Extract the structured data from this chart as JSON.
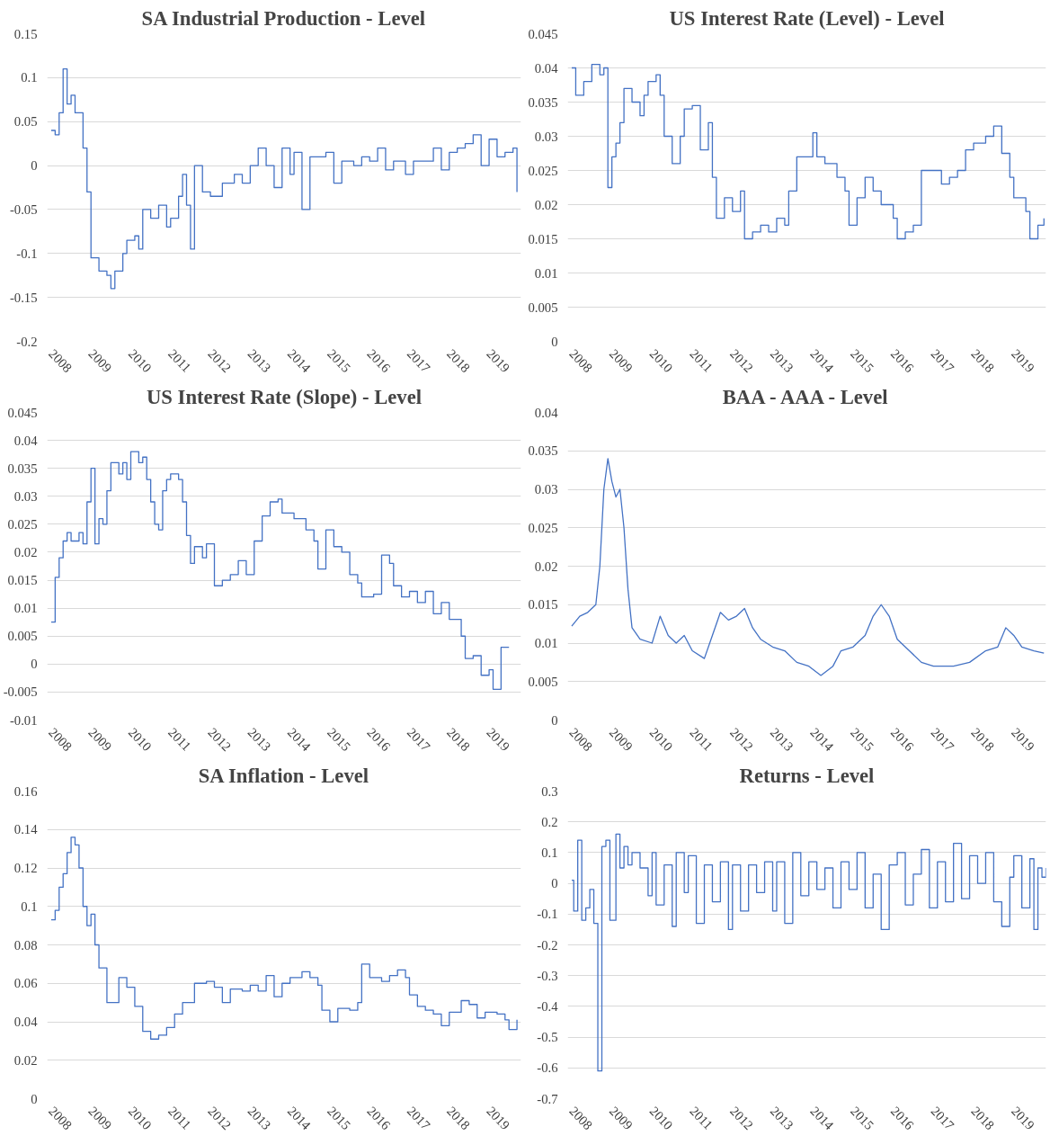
{
  "chart_data": [
    {
      "type": "step",
      "title": "SA Industrial Production - Level",
      "xlim": [
        2007.9,
        2019.8
      ],
      "xticks": [
        2008,
        2009,
        2010,
        2011,
        2012,
        2013,
        2014,
        2015,
        2016,
        2017,
        2018,
        2019
      ],
      "ylim": [
        -0.2,
        0.15
      ],
      "yticks": [
        -0.2,
        -0.15,
        -0.1,
        -0.05,
        0,
        0.05,
        0.1,
        0.15
      ],
      "grid": "y",
      "line_style": "solid",
      "series": [
        {
          "color": "#4472c4",
          "x": [
            2008.0,
            2008.1,
            2008.2,
            2008.3,
            2008.4,
            2008.5,
            2008.6,
            2008.8,
            2008.9,
            2009.0,
            2009.2,
            2009.4,
            2009.5,
            2009.6,
            2009.8,
            2009.9,
            2010.1,
            2010.2,
            2010.3,
            2010.5,
            2010.7,
            2010.9,
            2011.0,
            2011.2,
            2011.3,
            2011.4,
            2011.5,
            2011.6,
            2011.8,
            2012.0,
            2012.3,
            2012.6,
            2012.8,
            2013.0,
            2013.2,
            2013.4,
            2013.6,
            2013.8,
            2014.0,
            2014.1,
            2014.3,
            2014.5,
            2014.7,
            2014.9,
            2015.1,
            2015.3,
            2015.6,
            2015.8,
            2016.0,
            2016.2,
            2016.4,
            2016.6,
            2016.9,
            2017.1,
            2017.4,
            2017.6,
            2017.8,
            2018.0,
            2018.2,
            2018.4,
            2018.6,
            2018.8,
            2019.0,
            2019.2,
            2019.4,
            2019.6,
            2019.7
          ],
          "values": [
            0.04,
            0.035,
            0.06,
            0.11,
            0.07,
            0.08,
            0.06,
            0.02,
            -0.03,
            -0.105,
            -0.12,
            -0.125,
            -0.14,
            -0.12,
            -0.1,
            -0.085,
            -0.08,
            -0.095,
            -0.05,
            -0.06,
            -0.045,
            -0.07,
            -0.06,
            -0.035,
            -0.01,
            -0.045,
            -0.095,
            0.0,
            -0.03,
            -0.035,
            -0.02,
            -0.01,
            -0.02,
            0.0,
            0.02,
            0.0,
            -0.025,
            0.02,
            -0.01,
            0.015,
            -0.05,
            0.01,
            0.01,
            0.015,
            -0.02,
            0.005,
            0.0,
            0.01,
            0.005,
            0.02,
            -0.005,
            0.005,
            -0.01,
            0.005,
            0.005,
            0.02,
            -0.005,
            0.015,
            0.02,
            0.025,
            0.035,
            0.0,
            0.03,
            0.01,
            0.015,
            0.02,
            -0.03
          ]
        }
      ]
    },
    {
      "type": "step",
      "title": "US Interest Rate (Level) - Level",
      "xlim": [
        2007.9,
        2019.8
      ],
      "xticks": [
        2008,
        2009,
        2010,
        2011,
        2012,
        2013,
        2014,
        2015,
        2016,
        2017,
        2018,
        2019
      ],
      "ylim": [
        0,
        0.045
      ],
      "yticks": [
        0,
        0.005,
        0.01,
        0.015,
        0.02,
        0.025,
        0.03,
        0.035,
        0.04,
        0.045
      ],
      "grid": "y",
      "line_style": "solid",
      "series": [
        {
          "color": "#4472c4",
          "x": [
            2008.0,
            2008.1,
            2008.3,
            2008.5,
            2008.7,
            2008.8,
            2008.9,
            2009.0,
            2009.1,
            2009.2,
            2009.3,
            2009.5,
            2009.7,
            2009.8,
            2009.9,
            2010.1,
            2010.2,
            2010.3,
            2010.5,
            2010.7,
            2010.8,
            2011.0,
            2011.2,
            2011.4,
            2011.5,
            2011.6,
            2011.8,
            2012.0,
            2012.2,
            2012.3,
            2012.5,
            2012.7,
            2012.9,
            2013.1,
            2013.3,
            2013.4,
            2013.6,
            2013.9,
            2014.0,
            2014.1,
            2014.3,
            2014.6,
            2014.8,
            2014.9,
            2015.1,
            2015.3,
            2015.5,
            2015.7,
            2016.0,
            2016.1,
            2016.3,
            2016.5,
            2016.7,
            2017.0,
            2017.2,
            2017.4,
            2017.6,
            2017.8,
            2018.0,
            2018.3,
            2018.5,
            2018.7,
            2018.9,
            2019.0,
            2019.3,
            2019.4,
            2019.6,
            2019.75
          ],
          "values": [
            0.04,
            0.036,
            0.038,
            0.0405,
            0.039,
            0.04,
            0.0225,
            0.027,
            0.029,
            0.032,
            0.037,
            0.035,
            0.033,
            0.036,
            0.038,
            0.039,
            0.036,
            0.03,
            0.026,
            0.03,
            0.034,
            0.0345,
            0.028,
            0.032,
            0.024,
            0.018,
            0.021,
            0.019,
            0.022,
            0.015,
            0.016,
            0.017,
            0.016,
            0.018,
            0.017,
            0.022,
            0.027,
            0.027,
            0.0305,
            0.027,
            0.026,
            0.024,
            0.022,
            0.017,
            0.021,
            0.024,
            0.022,
            0.02,
            0.018,
            0.015,
            0.016,
            0.017,
            0.025,
            0.025,
            0.023,
            0.024,
            0.025,
            0.028,
            0.029,
            0.03,
            0.0315,
            0.0275,
            0.024,
            0.021,
            0.019,
            0.015,
            0.017,
            0.018
          ]
        }
      ]
    },
    {
      "type": "step",
      "title": "US Interest Rate (Slope) - Level",
      "xlim": [
        2007.9,
        2019.8
      ],
      "xticks": [
        2008,
        2009,
        2010,
        2011,
        2012,
        2013,
        2014,
        2015,
        2016,
        2017,
        2018,
        2019
      ],
      "ylim": [
        -0.01,
        0.045
      ],
      "yticks": [
        -0.01,
        -0.005,
        0,
        0.005,
        0.01,
        0.015,
        0.02,
        0.025,
        0.03,
        0.035,
        0.04,
        0.045
      ],
      "grid": "y",
      "line_style": "solid",
      "series": [
        {
          "color": "#4472c4",
          "x": [
            2008.0,
            2008.1,
            2008.2,
            2008.3,
            2008.4,
            2008.5,
            2008.7,
            2008.8,
            2008.9,
            2009.0,
            2009.1,
            2009.2,
            2009.3,
            2009.4,
            2009.5,
            2009.7,
            2009.8,
            2009.9,
            2010.0,
            2010.2,
            2010.3,
            2010.4,
            2010.5,
            2010.6,
            2010.7,
            2010.8,
            2010.9,
            2011.0,
            2011.2,
            2011.3,
            2011.4,
            2011.5,
            2011.6,
            2011.8,
            2011.9,
            2012.1,
            2012.3,
            2012.5,
            2012.7,
            2012.9,
            2013.1,
            2013.3,
            2013.5,
            2013.7,
            2013.8,
            2014.1,
            2014.4,
            2014.6,
            2014.7,
            2014.9,
            2015.1,
            2015.3,
            2015.5,
            2015.7,
            2015.8,
            2016.1,
            2016.3,
            2016.5,
            2016.6,
            2016.8,
            2017.0,
            2017.2,
            2017.4,
            2017.6,
            2017.8,
            2018.0,
            2018.3,
            2018.4,
            2018.6,
            2018.8,
            2019.0,
            2019.1,
            2019.3,
            2019.5
          ],
          "values": [
            0.0075,
            0.0155,
            0.019,
            0.022,
            0.0235,
            0.022,
            0.0235,
            0.0215,
            0.029,
            0.035,
            0.0215,
            0.026,
            0.025,
            0.031,
            0.036,
            0.034,
            0.036,
            0.033,
            0.038,
            0.036,
            0.037,
            0.033,
            0.029,
            0.025,
            0.024,
            0.031,
            0.033,
            0.034,
            0.033,
            0.029,
            0.023,
            0.018,
            0.021,
            0.019,
            0.0215,
            0.014,
            0.015,
            0.016,
            0.0185,
            0.016,
            0.022,
            0.0265,
            0.029,
            0.0295,
            0.027,
            0.026,
            0.024,
            0.022,
            0.017,
            0.024,
            0.021,
            0.02,
            0.016,
            0.0145,
            0.012,
            0.0125,
            0.0195,
            0.018,
            0.014,
            0.012,
            0.013,
            0.011,
            0.013,
            0.009,
            0.011,
            0.008,
            0.005,
            0.001,
            0.0015,
            -0.002,
            -0.001,
            -0.0045,
            0.003,
            0.003
          ]
        }
      ]
    },
    {
      "type": "line",
      "title": "BAA - AAA - Level",
      "xlim": [
        2007.9,
        2019.8
      ],
      "xticks": [
        2008,
        2009,
        2010,
        2011,
        2012,
        2013,
        2014,
        2015,
        2016,
        2017,
        2018,
        2019
      ],
      "ylim": [
        0,
        0.04
      ],
      "yticks": [
        0,
        0.005,
        0.01,
        0.015,
        0.02,
        0.025,
        0.03,
        0.035,
        0.04
      ],
      "grid": "y",
      "line_style": "solid",
      "series": [
        {
          "color": "#4472c4",
          "x": [
            2008.0,
            2008.2,
            2008.4,
            2008.6,
            2008.7,
            2008.8,
            2008.9,
            2009.0,
            2009.1,
            2009.2,
            2009.3,
            2009.4,
            2009.5,
            2009.7,
            2010.0,
            2010.2,
            2010.4,
            2010.6,
            2010.8,
            2011.0,
            2011.3,
            2011.5,
            2011.7,
            2011.9,
            2012.1,
            2012.3,
            2012.5,
            2012.7,
            2013.0,
            2013.3,
            2013.6,
            2013.9,
            2014.2,
            2014.5,
            2014.7,
            2015.0,
            2015.3,
            2015.5,
            2015.7,
            2015.9,
            2016.1,
            2016.4,
            2016.7,
            2017.0,
            2017.5,
            2017.9,
            2018.3,
            2018.6,
            2018.8,
            2019.0,
            2019.2,
            2019.5,
            2019.75
          ],
          "values": [
            0.0122,
            0.0135,
            0.014,
            0.015,
            0.02,
            0.03,
            0.034,
            0.031,
            0.029,
            0.03,
            0.025,
            0.017,
            0.012,
            0.0105,
            0.01,
            0.0135,
            0.011,
            0.01,
            0.011,
            0.009,
            0.008,
            0.011,
            0.014,
            0.013,
            0.0135,
            0.0145,
            0.012,
            0.0105,
            0.0095,
            0.009,
            0.0075,
            0.007,
            0.0058,
            0.007,
            0.009,
            0.0095,
            0.011,
            0.0135,
            0.015,
            0.0135,
            0.0105,
            0.009,
            0.0075,
            0.007,
            0.007,
            0.0075,
            0.009,
            0.0095,
            0.012,
            0.011,
            0.0095,
            0.009,
            0.0087
          ]
        }
      ]
    },
    {
      "type": "step",
      "title": "SA Inflation - Level",
      "xlim": [
        2007.9,
        2019.8
      ],
      "xticks": [
        2008,
        2009,
        2010,
        2011,
        2012,
        2013,
        2014,
        2015,
        2016,
        2017,
        2018,
        2019
      ],
      "ylim": [
        0,
        0.16
      ],
      "yticks": [
        0,
        0.02,
        0.04,
        0.06,
        0.08,
        0.1,
        0.12,
        0.14,
        0.16
      ],
      "grid": "y",
      "line_style": "solid",
      "series": [
        {
          "color": "#4472c4",
          "x": [
            2008.0,
            2008.1,
            2008.2,
            2008.3,
            2008.4,
            2008.5,
            2008.6,
            2008.7,
            2008.8,
            2008.9,
            2009.0,
            2009.1,
            2009.2,
            2009.4,
            2009.6,
            2009.7,
            2009.9,
            2010.1,
            2010.3,
            2010.5,
            2010.7,
            2010.9,
            2011.1,
            2011.3,
            2011.6,
            2011.9,
            2012.1,
            2012.3,
            2012.5,
            2012.8,
            2013.0,
            2013.2,
            2013.4,
            2013.6,
            2013.8,
            2014.0,
            2014.3,
            2014.5,
            2014.7,
            2014.8,
            2015.0,
            2015.2,
            2015.5,
            2015.7,
            2015.8,
            2016.0,
            2016.3,
            2016.5,
            2016.7,
            2016.9,
            2017.0,
            2017.2,
            2017.4,
            2017.6,
            2017.8,
            2018.0,
            2018.3,
            2018.5,
            2018.7,
            2018.9,
            2019.2,
            2019.4,
            2019.5,
            2019.7
          ],
          "values": [
            0.093,
            0.098,
            0.11,
            0.117,
            0.128,
            0.136,
            0.132,
            0.12,
            0.1,
            0.09,
            0.096,
            0.08,
            0.068,
            0.05,
            0.05,
            0.063,
            0.058,
            0.048,
            0.035,
            0.031,
            0.033,
            0.037,
            0.044,
            0.05,
            0.06,
            0.061,
            0.058,
            0.05,
            0.057,
            0.056,
            0.059,
            0.056,
            0.064,
            0.053,
            0.06,
            0.063,
            0.066,
            0.063,
            0.059,
            0.046,
            0.04,
            0.047,
            0.046,
            0.05,
            0.07,
            0.063,
            0.061,
            0.064,
            0.067,
            0.063,
            0.054,
            0.048,
            0.046,
            0.044,
            0.038,
            0.045,
            0.051,
            0.049,
            0.042,
            0.045,
            0.044,
            0.041,
            0.036,
            0.041
          ]
        }
      ]
    },
    {
      "type": "step",
      "title": "Returns - Level",
      "xlim": [
        2007.9,
        2019.8
      ],
      "xticks": [
        2008,
        2009,
        2010,
        2011,
        2012,
        2013,
        2014,
        2015,
        2016,
        2017,
        2018,
        2019
      ],
      "ylim": [
        -0.7,
        0.3
      ],
      "yticks": [
        -0.7,
        -0.6,
        -0.5,
        -0.4,
        -0.3,
        -0.2,
        -0.1,
        0,
        0.1,
        0.2,
        0.3
      ],
      "grid": "y",
      "line_style": "solid",
      "series": [
        {
          "color": "#4472c4",
          "x": [
            2008.0,
            2008.05,
            2008.15,
            2008.25,
            2008.35,
            2008.45,
            2008.55,
            2008.65,
            2008.75,
            2008.85,
            2008.95,
            2009.1,
            2009.2,
            2009.3,
            2009.4,
            2009.5,
            2009.7,
            2009.9,
            2010.0,
            2010.1,
            2010.3,
            2010.5,
            2010.6,
            2010.8,
            2010.9,
            2011.1,
            2011.3,
            2011.5,
            2011.7,
            2011.9,
            2012.0,
            2012.2,
            2012.4,
            2012.6,
            2012.8,
            2013.0,
            2013.1,
            2013.3,
            2013.5,
            2013.7,
            2013.9,
            2014.1,
            2014.3,
            2014.5,
            2014.7,
            2014.9,
            2015.1,
            2015.3,
            2015.5,
            2015.7,
            2015.9,
            2016.1,
            2016.3,
            2016.5,
            2016.7,
            2016.9,
            2017.1,
            2017.3,
            2017.5,
            2017.7,
            2017.9,
            2018.1,
            2018.3,
            2018.5,
            2018.7,
            2018.9,
            2019.0,
            2019.2,
            2019.4,
            2019.5,
            2019.6,
            2019.7,
            2019.8
          ],
          "values": [
            0.01,
            -0.09,
            0.14,
            -0.12,
            -0.08,
            -0.02,
            -0.13,
            -0.61,
            0.12,
            0.14,
            -0.12,
            0.16,
            0.05,
            0.12,
            0.06,
            0.1,
            0.05,
            -0.04,
            0.1,
            -0.07,
            0.06,
            -0.14,
            0.1,
            -0.03,
            0.09,
            -0.13,
            0.06,
            -0.06,
            0.07,
            -0.15,
            0.06,
            -0.09,
            0.06,
            -0.03,
            0.07,
            -0.09,
            0.07,
            -0.13,
            0.1,
            -0.04,
            0.07,
            -0.02,
            0.05,
            -0.08,
            0.07,
            -0.02,
            0.1,
            -0.08,
            0.03,
            -0.15,
            0.06,
            0.1,
            -0.07,
            0.03,
            0.11,
            -0.08,
            0.07,
            -0.06,
            0.13,
            -0.05,
            0.09,
            0.0,
            0.1,
            -0.06,
            -0.14,
            0.02,
            0.09,
            -0.08,
            0.08,
            -0.15,
            0.05,
            0.02,
            0.05
          ]
        }
      ]
    }
  ]
}
